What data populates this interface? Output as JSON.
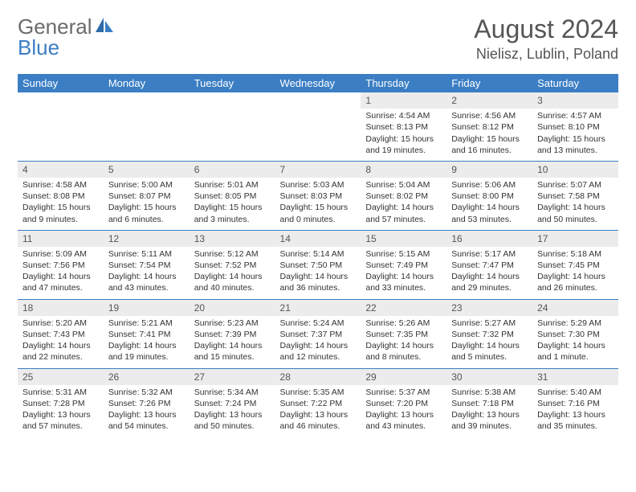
{
  "logo": {
    "word1": "General",
    "word2": "Blue"
  },
  "title": "August 2024",
  "location": "Nielisz, Lublin, Poland",
  "colors": {
    "header_bg": "#3b7ec4",
    "header_text": "#ffffff",
    "daynum_bg": "#ececec",
    "row_border": "#3b7ec4",
    "body_text": "#333333",
    "title_text": "#555555",
    "logo_gray": "#6b6b6b",
    "logo_blue": "#3b7ec4",
    "background": "#ffffff"
  },
  "typography": {
    "title_fontsize": 32,
    "location_fontsize": 18,
    "dayhead_fontsize": 13,
    "daynum_fontsize": 12,
    "cell_fontsize": 10.5,
    "font_family": "Arial"
  },
  "day_headers": [
    "Sunday",
    "Monday",
    "Tuesday",
    "Wednesday",
    "Thursday",
    "Friday",
    "Saturday"
  ],
  "weeks": [
    [
      {
        "empty": true
      },
      {
        "empty": true
      },
      {
        "empty": true
      },
      {
        "empty": true
      },
      {
        "num": "1",
        "sunrise": "Sunrise: 4:54 AM",
        "sunset": "Sunset: 8:13 PM",
        "daylight": "Daylight: 15 hours and 19 minutes."
      },
      {
        "num": "2",
        "sunrise": "Sunrise: 4:56 AM",
        "sunset": "Sunset: 8:12 PM",
        "daylight": "Daylight: 15 hours and 16 minutes."
      },
      {
        "num": "3",
        "sunrise": "Sunrise: 4:57 AM",
        "sunset": "Sunset: 8:10 PM",
        "daylight": "Daylight: 15 hours and 13 minutes."
      }
    ],
    [
      {
        "num": "4",
        "sunrise": "Sunrise: 4:58 AM",
        "sunset": "Sunset: 8:08 PM",
        "daylight": "Daylight: 15 hours and 9 minutes."
      },
      {
        "num": "5",
        "sunrise": "Sunrise: 5:00 AM",
        "sunset": "Sunset: 8:07 PM",
        "daylight": "Daylight: 15 hours and 6 minutes."
      },
      {
        "num": "6",
        "sunrise": "Sunrise: 5:01 AM",
        "sunset": "Sunset: 8:05 PM",
        "daylight": "Daylight: 15 hours and 3 minutes."
      },
      {
        "num": "7",
        "sunrise": "Sunrise: 5:03 AM",
        "sunset": "Sunset: 8:03 PM",
        "daylight": "Daylight: 15 hours and 0 minutes."
      },
      {
        "num": "8",
        "sunrise": "Sunrise: 5:04 AM",
        "sunset": "Sunset: 8:02 PM",
        "daylight": "Daylight: 14 hours and 57 minutes."
      },
      {
        "num": "9",
        "sunrise": "Sunrise: 5:06 AM",
        "sunset": "Sunset: 8:00 PM",
        "daylight": "Daylight: 14 hours and 53 minutes."
      },
      {
        "num": "10",
        "sunrise": "Sunrise: 5:07 AM",
        "sunset": "Sunset: 7:58 PM",
        "daylight": "Daylight: 14 hours and 50 minutes."
      }
    ],
    [
      {
        "num": "11",
        "sunrise": "Sunrise: 5:09 AM",
        "sunset": "Sunset: 7:56 PM",
        "daylight": "Daylight: 14 hours and 47 minutes."
      },
      {
        "num": "12",
        "sunrise": "Sunrise: 5:11 AM",
        "sunset": "Sunset: 7:54 PM",
        "daylight": "Daylight: 14 hours and 43 minutes."
      },
      {
        "num": "13",
        "sunrise": "Sunrise: 5:12 AM",
        "sunset": "Sunset: 7:52 PM",
        "daylight": "Daylight: 14 hours and 40 minutes."
      },
      {
        "num": "14",
        "sunrise": "Sunrise: 5:14 AM",
        "sunset": "Sunset: 7:50 PM",
        "daylight": "Daylight: 14 hours and 36 minutes."
      },
      {
        "num": "15",
        "sunrise": "Sunrise: 5:15 AM",
        "sunset": "Sunset: 7:49 PM",
        "daylight": "Daylight: 14 hours and 33 minutes."
      },
      {
        "num": "16",
        "sunrise": "Sunrise: 5:17 AM",
        "sunset": "Sunset: 7:47 PM",
        "daylight": "Daylight: 14 hours and 29 minutes."
      },
      {
        "num": "17",
        "sunrise": "Sunrise: 5:18 AM",
        "sunset": "Sunset: 7:45 PM",
        "daylight": "Daylight: 14 hours and 26 minutes."
      }
    ],
    [
      {
        "num": "18",
        "sunrise": "Sunrise: 5:20 AM",
        "sunset": "Sunset: 7:43 PM",
        "daylight": "Daylight: 14 hours and 22 minutes."
      },
      {
        "num": "19",
        "sunrise": "Sunrise: 5:21 AM",
        "sunset": "Sunset: 7:41 PM",
        "daylight": "Daylight: 14 hours and 19 minutes."
      },
      {
        "num": "20",
        "sunrise": "Sunrise: 5:23 AM",
        "sunset": "Sunset: 7:39 PM",
        "daylight": "Daylight: 14 hours and 15 minutes."
      },
      {
        "num": "21",
        "sunrise": "Sunrise: 5:24 AM",
        "sunset": "Sunset: 7:37 PM",
        "daylight": "Daylight: 14 hours and 12 minutes."
      },
      {
        "num": "22",
        "sunrise": "Sunrise: 5:26 AM",
        "sunset": "Sunset: 7:35 PM",
        "daylight": "Daylight: 14 hours and 8 minutes."
      },
      {
        "num": "23",
        "sunrise": "Sunrise: 5:27 AM",
        "sunset": "Sunset: 7:32 PM",
        "daylight": "Daylight: 14 hours and 5 minutes."
      },
      {
        "num": "24",
        "sunrise": "Sunrise: 5:29 AM",
        "sunset": "Sunset: 7:30 PM",
        "daylight": "Daylight: 14 hours and 1 minute."
      }
    ],
    [
      {
        "num": "25",
        "sunrise": "Sunrise: 5:31 AM",
        "sunset": "Sunset: 7:28 PM",
        "daylight": "Daylight: 13 hours and 57 minutes."
      },
      {
        "num": "26",
        "sunrise": "Sunrise: 5:32 AM",
        "sunset": "Sunset: 7:26 PM",
        "daylight": "Daylight: 13 hours and 54 minutes."
      },
      {
        "num": "27",
        "sunrise": "Sunrise: 5:34 AM",
        "sunset": "Sunset: 7:24 PM",
        "daylight": "Daylight: 13 hours and 50 minutes."
      },
      {
        "num": "28",
        "sunrise": "Sunrise: 5:35 AM",
        "sunset": "Sunset: 7:22 PM",
        "daylight": "Daylight: 13 hours and 46 minutes."
      },
      {
        "num": "29",
        "sunrise": "Sunrise: 5:37 AM",
        "sunset": "Sunset: 7:20 PM",
        "daylight": "Daylight: 13 hours and 43 minutes."
      },
      {
        "num": "30",
        "sunrise": "Sunrise: 5:38 AM",
        "sunset": "Sunset: 7:18 PM",
        "daylight": "Daylight: 13 hours and 39 minutes."
      },
      {
        "num": "31",
        "sunrise": "Sunrise: 5:40 AM",
        "sunset": "Sunset: 7:16 PM",
        "daylight": "Daylight: 13 hours and 35 minutes."
      }
    ]
  ]
}
